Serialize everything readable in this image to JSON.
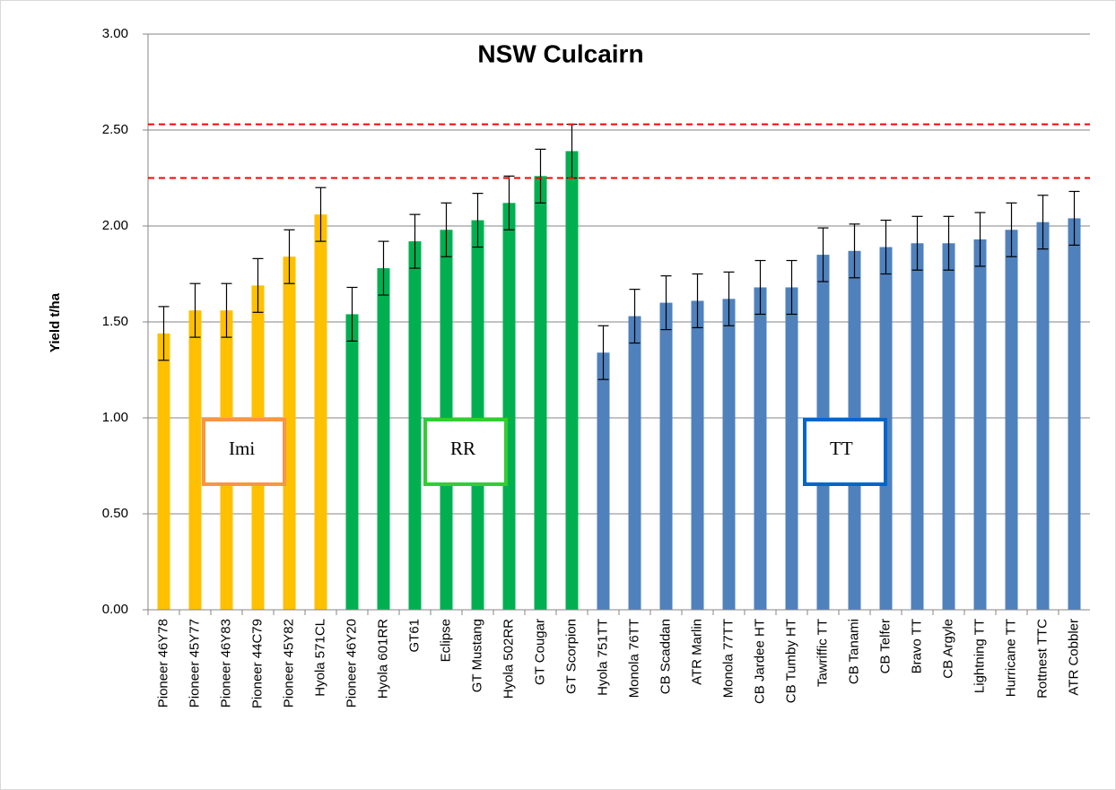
{
  "chart_data": {
    "type": "bar",
    "title": "NSW Culcairn",
    "y_label": "Yield t/ha",
    "categories": [
      "Pioneer 46Y78",
      "Pioneer 45Y77",
      "Pioneer 46Y83",
      "Pioneer 44C79",
      "Pioneer 45Y82",
      "Hyola 571CL",
      "Pioneer 46Y20",
      "Hyola 601RR",
      "GT61",
      "Eclipse",
      "GT Mustang",
      "Hyola 502RR",
      "GT Cougar",
      "GT Scorpion",
      "Hyola 751TT",
      "Monola 76TT",
      "CB Scaddan",
      "ATR Marlin",
      "Monola 77TT",
      "CB Jardee HT",
      "CB Tumby HT",
      "Tawriffic TT",
      "CB Tanami",
      "CB Telfer",
      "Bravo TT",
      "CB Argyle",
      "Lightning TT",
      "Hurricane TT",
      "Rottnest TTC",
      "ATR Cobbler"
    ],
    "values": [
      1.44,
      1.56,
      1.56,
      1.69,
      1.84,
      2.06,
      1.54,
      1.78,
      1.92,
      1.98,
      2.03,
      2.12,
      2.26,
      2.39,
      1.34,
      1.53,
      1.6,
      1.61,
      1.62,
      1.68,
      1.68,
      1.85,
      1.87,
      1.89,
      1.91,
      1.91,
      1.93,
      1.98,
      2.02,
      2.04
    ],
    "errors": [
      0.14,
      0.14,
      0.14,
      0.14,
      0.14,
      0.14,
      0.14,
      0.14,
      0.14,
      0.14,
      0.14,
      0.14,
      0.14,
      0.14,
      0.14,
      0.14,
      0.14,
      0.14,
      0.14,
      0.14,
      0.14,
      0.14,
      0.14,
      0.14,
      0.14,
      0.14,
      0.14,
      0.14,
      0.14,
      0.14
    ],
    "colors": [
      "#FFC000",
      "#FFC000",
      "#FFC000",
      "#FFC000",
      "#FFC000",
      "#FFC000",
      "#00B050",
      "#00B050",
      "#00B050",
      "#00B050",
      "#00B050",
      "#00B050",
      "#00B050",
      "#00B050",
      "#4F81BD",
      "#4F81BD",
      "#4F81BD",
      "#4F81BD",
      "#4F81BD",
      "#4F81BD",
      "#4F81BD",
      "#4F81BD",
      "#4F81BD",
      "#4F81BD",
      "#4F81BD",
      "#4F81BD",
      "#4F81BD",
      "#4F81BD",
      "#4F81BD",
      "#4F81BD"
    ],
    "ylim": [
      0,
      3
    ],
    "yticks": [
      {
        "value": 0,
        "label": "0.00"
      },
      {
        "value": 0.5,
        "label": "0.50"
      },
      {
        "value": 1,
        "label": "1.00"
      },
      {
        "value": 1.5,
        "label": "1.50"
      },
      {
        "value": 2,
        "label": "2.00"
      },
      {
        "value": 2.5,
        "label": "2.50"
      },
      {
        "value": 3,
        "label": "3.00"
      }
    ],
    "grid": true,
    "reference_lines": [
      {
        "value": 2.53,
        "color": "#FF0000"
      },
      {
        "value": 2.25,
        "color": "#FF0000"
      }
    ],
    "annotations": [
      {
        "text": "Imi",
        "color": "#F79646"
      },
      {
        "text": "RR",
        "color": "#33CC33"
      },
      {
        "text": "TT",
        "color": "#0066CC"
      }
    ]
  }
}
